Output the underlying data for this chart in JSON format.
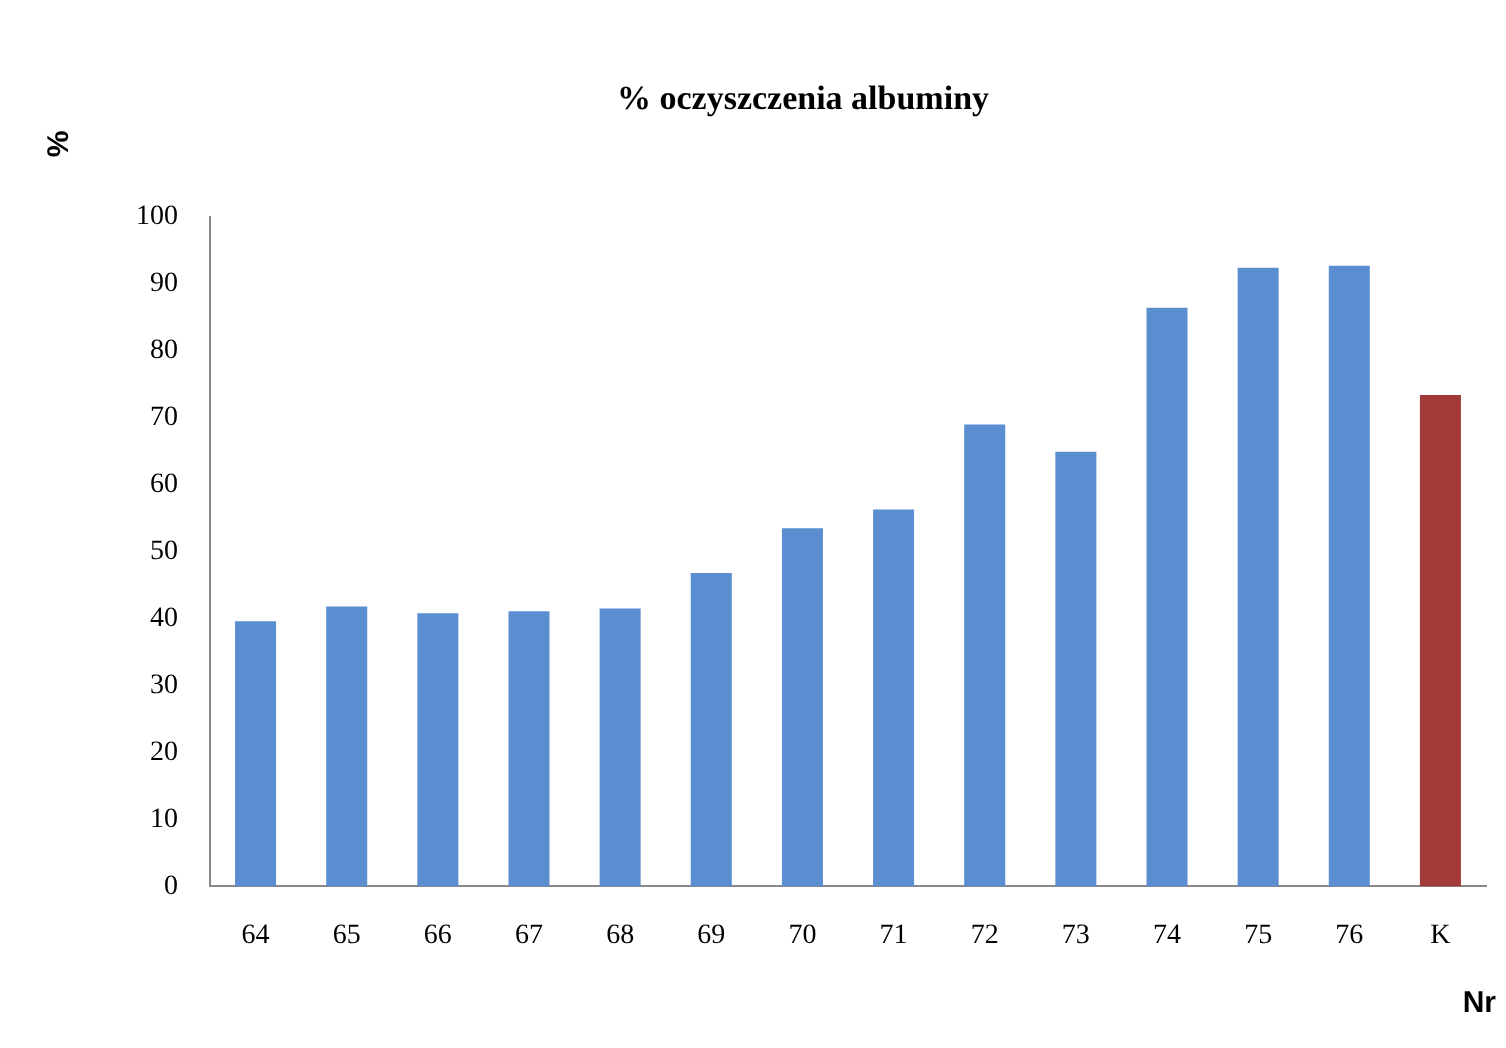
{
  "chart_data": {
    "type": "bar",
    "title": "% oczyszczenia albuminy",
    "xlabel": "Nr",
    "ylabel": "%",
    "categories": [
      "64",
      "65",
      "66",
      "67",
      "68",
      "69",
      "70",
      "71",
      "72",
      "73",
      "74",
      "75",
      "76",
      "K"
    ],
    "values": [
      39.6,
      41.8,
      40.8,
      41.1,
      41.5,
      46.8,
      53.5,
      56.3,
      69,
      64.9,
      86.4,
      92.4,
      92.7,
      73.4
    ],
    "colors": [
      "#5a8ed0",
      "#5a8ed0",
      "#5a8ed0",
      "#5a8ed0",
      "#5a8ed0",
      "#5a8ed0",
      "#5a8ed0",
      "#5a8ed0",
      "#5a8ed0",
      "#5a8ed0",
      "#5a8ed0",
      "#5a8ed0",
      "#5a8ed0",
      "#a33a3a"
    ],
    "ylim": [
      0,
      100
    ],
    "yticks": [
      0,
      10,
      20,
      30,
      40,
      50,
      60,
      70,
      80,
      90,
      100
    ],
    "grid": false,
    "legend": false
  }
}
